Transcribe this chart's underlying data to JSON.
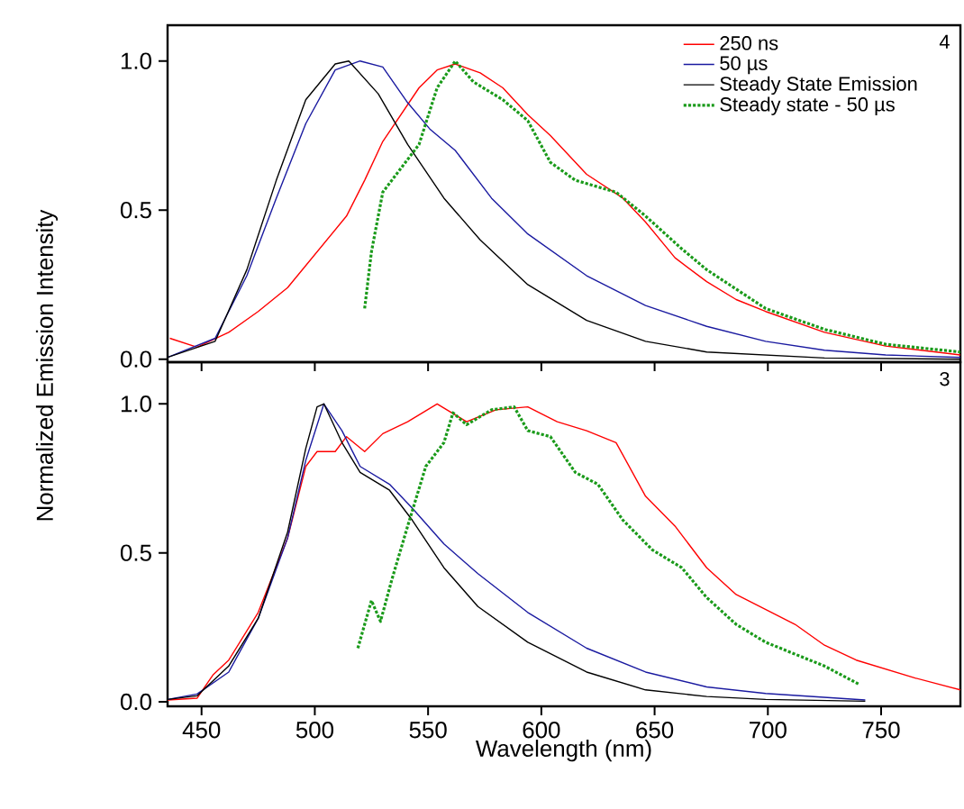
{
  "chart_data": [
    {
      "type": "line",
      "ylabel": "Normalized Emission Intensity",
      "annotations": [
        "4"
      ],
      "xlim": [
        435,
        785
      ],
      "ylim": [
        -0.01,
        1.12
      ],
      "xticks": [
        450,
        500,
        550,
        600,
        650,
        700,
        750
      ],
      "yticks": [
        {
          "value": 0,
          "label": "0.0"
        },
        {
          "value": 0.5,
          "label": "0.5"
        },
        {
          "value": 1,
          "label": "1.0"
        }
      ],
      "tick_labels": "y",
      "grid": false,
      "legend": "top right",
      "marker": "none",
      "series": [
        {
          "name": "250 ns",
          "color": "#ff0000",
          "line_style": "solid",
          "x": [
            436,
            448,
            462,
            475,
            488,
            501,
            514,
            522,
            530,
            538,
            546,
            554,
            562,
            573,
            583,
            594,
            604,
            620,
            636,
            646,
            659,
            673,
            686,
            699,
            725,
            752,
            785
          ],
          "values": [
            0.07,
            0.04,
            0.09,
            0.16,
            0.24,
            0.36,
            0.48,
            0.6,
            0.73,
            0.82,
            0.91,
            0.97,
            0.99,
            0.96,
            0.91,
            0.82,
            0.75,
            0.62,
            0.54,
            0.46,
            0.34,
            0.26,
            0.2,
            0.16,
            0.09,
            0.044,
            0.014
          ]
        },
        {
          "name": "50 µs",
          "color": "#1a1aa0",
          "line_style": "solid",
          "x": [
            435,
            456,
            470,
            483,
            496,
            509,
            520,
            530,
            541,
            551,
            562,
            578,
            594,
            620,
            646,
            673,
            699,
            725,
            752,
            785
          ],
          "values": [
            0.006,
            0.07,
            0.28,
            0.54,
            0.79,
            0.97,
            1.0,
            0.98,
            0.86,
            0.77,
            0.7,
            0.54,
            0.42,
            0.28,
            0.18,
            0.11,
            0.06,
            0.03,
            0.014,
            0.006
          ]
        },
        {
          "name": "Steady State Emission",
          "color": "#000000",
          "line_style": "solid",
          "x": [
            435,
            456,
            470,
            483,
            496,
            509,
            515,
            528,
            541,
            557,
            573,
            594,
            620,
            646,
            673,
            725,
            785
          ],
          "values": [
            0.006,
            0.06,
            0.3,
            0.6,
            0.87,
            0.99,
            1.0,
            0.89,
            0.72,
            0.54,
            0.4,
            0.25,
            0.13,
            0.06,
            0.024,
            0.004,
            0.0
          ]
        },
        {
          "name": "Steady state - 50 µs",
          "color": "#1a9a1a",
          "line_style": "dotted",
          "x": [
            522,
            525,
            530,
            538,
            546,
            554,
            562,
            570,
            583,
            594,
            604,
            615,
            633,
            646,
            662,
            673,
            699,
            725,
            752,
            785
          ],
          "values": [
            0.17,
            0.36,
            0.56,
            0.64,
            0.72,
            0.91,
            1.0,
            0.93,
            0.87,
            0.8,
            0.66,
            0.6,
            0.56,
            0.48,
            0.37,
            0.3,
            0.17,
            0.1,
            0.05,
            0.024
          ]
        }
      ]
    },
    {
      "type": "line",
      "xlabel": "Wavelength (nm)",
      "annotations": [
        "3"
      ],
      "xlim": [
        435,
        785
      ],
      "ylim": [
        -0.015,
        1.14
      ],
      "xticks": [
        450,
        500,
        550,
        600,
        650,
        700,
        750
      ],
      "yticks": [
        {
          "value": 0,
          "label": "0.0"
        },
        {
          "value": 0.5,
          "label": "0.5"
        },
        {
          "value": 1,
          "label": "1.0"
        }
      ],
      "grid": false,
      "marker": "none",
      "series": [
        {
          "color": "#ff0000",
          "line_style": "solid",
          "x": [
            435,
            448,
            455,
            462,
            475,
            488,
            496,
            501,
            509,
            514,
            522,
            530,
            541,
            554,
            567,
            580,
            594,
            607,
            620,
            633,
            646,
            659,
            673,
            686,
            699,
            712,
            725,
            739,
            752,
            765,
            785
          ],
          "values": [
            0.006,
            0.012,
            0.09,
            0.14,
            0.3,
            0.55,
            0.79,
            0.84,
            0.84,
            0.89,
            0.84,
            0.9,
            0.94,
            1.0,
            0.94,
            0.98,
            0.99,
            0.94,
            0.91,
            0.87,
            0.69,
            0.59,
            0.45,
            0.36,
            0.31,
            0.26,
            0.19,
            0.14,
            0.11,
            0.08,
            0.04
          ]
        },
        {
          "color": "#1a1aa0",
          "line_style": "solid",
          "x": [
            435,
            448,
            462,
            475,
            488,
            496,
            504,
            512,
            520,
            533,
            543,
            557,
            572,
            594,
            620,
            646,
            673,
            699,
            743
          ],
          "values": [
            0.008,
            0.026,
            0.1,
            0.28,
            0.55,
            0.81,
            1.0,
            0.91,
            0.79,
            0.73,
            0.65,
            0.53,
            0.43,
            0.3,
            0.18,
            0.1,
            0.05,
            0.028,
            0.006
          ]
        },
        {
          "color": "#000000",
          "line_style": "solid",
          "x": [
            435,
            448,
            462,
            475,
            488,
            496,
            501,
            504,
            512,
            520,
            533,
            543,
            557,
            572,
            594,
            620,
            646,
            673,
            699,
            743
          ],
          "values": [
            0.008,
            0.02,
            0.12,
            0.28,
            0.57,
            0.85,
            0.99,
            1.0,
            0.87,
            0.77,
            0.71,
            0.61,
            0.45,
            0.32,
            0.2,
            0.1,
            0.04,
            0.018,
            0.008,
            0.002
          ]
        },
        {
          "color": "#1a9a1a",
          "line_style": "dotted",
          "x": [
            519,
            525,
            529,
            534,
            541,
            549,
            557,
            561,
            567,
            578,
            588,
            594,
            604,
            615,
            625,
            636,
            649,
            662,
            673,
            686,
            699,
            712,
            725,
            740
          ],
          "values": [
            0.18,
            0.34,
            0.27,
            0.41,
            0.59,
            0.79,
            0.87,
            0.97,
            0.93,
            0.98,
            0.99,
            0.91,
            0.89,
            0.77,
            0.73,
            0.61,
            0.51,
            0.45,
            0.35,
            0.26,
            0.2,
            0.16,
            0.12,
            0.06
          ]
        }
      ]
    }
  ]
}
